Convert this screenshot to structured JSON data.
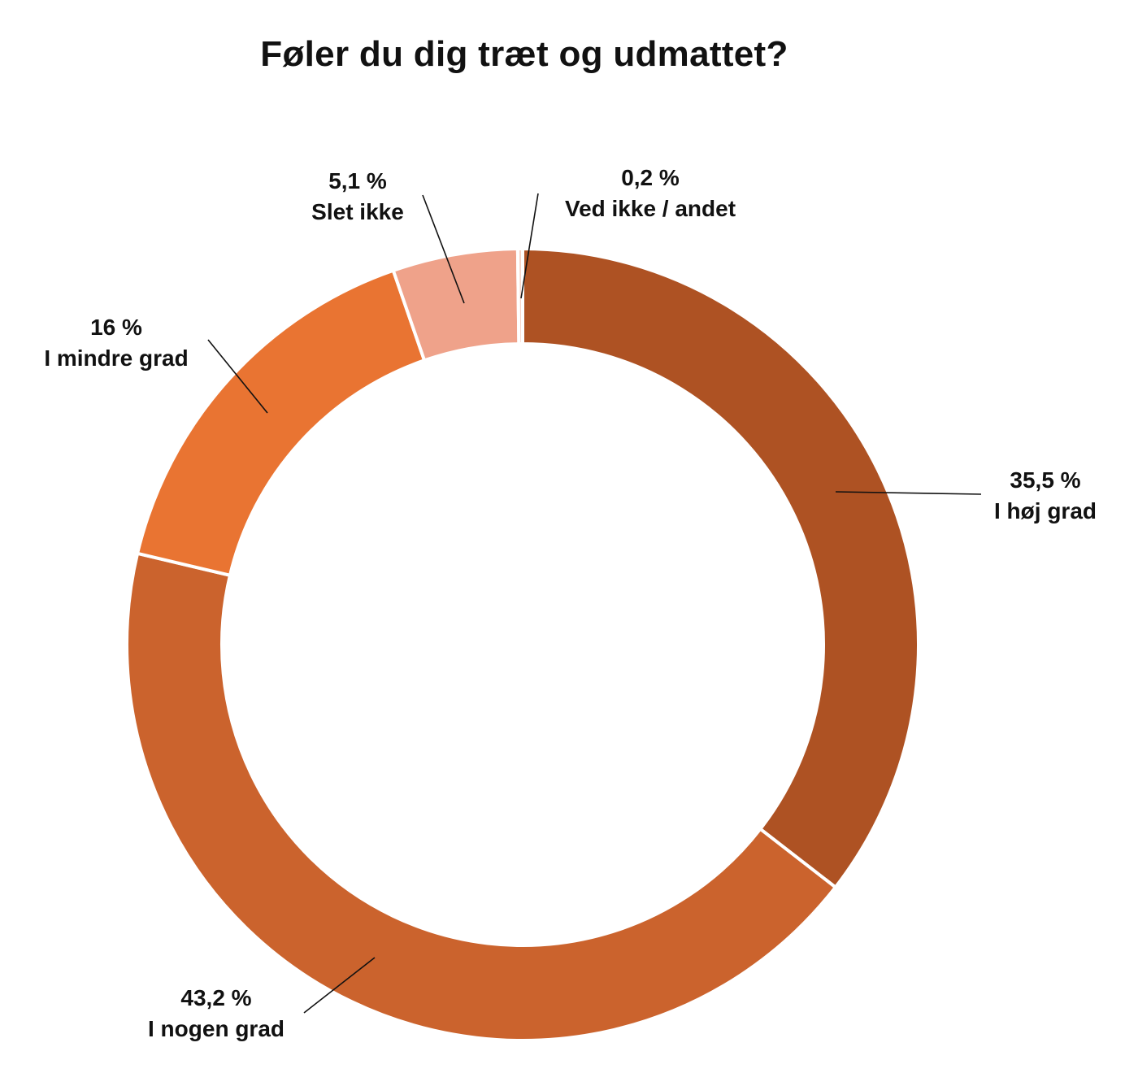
{
  "chart_data": {
    "type": "pie",
    "variant": "donut",
    "title": "Føler du dig træt og udmattet?",
    "slices": [
      {
        "label": "I høj grad",
        "value": 35.5,
        "value_text": "35,5 %",
        "color": "#AE5223"
      },
      {
        "label": "I nogen grad",
        "value": 43.2,
        "value_text": "43,2 %",
        "color": "#CB632D"
      },
      {
        "label": "I mindre grad",
        "value": 16,
        "value_text": "16 %",
        "color": "#E97432"
      },
      {
        "label": "Slet ikke",
        "value": 5.1,
        "value_text": "5,1 %",
        "color": "#EFA28A"
      },
      {
        "label": "Ved ikke / andet",
        "value": 0.2,
        "value_text": "0,2 %",
        "color": "#F7D4C7"
      }
    ],
    "start_angle_deg": 0,
    "direction": "clockwise",
    "legend": "none"
  }
}
